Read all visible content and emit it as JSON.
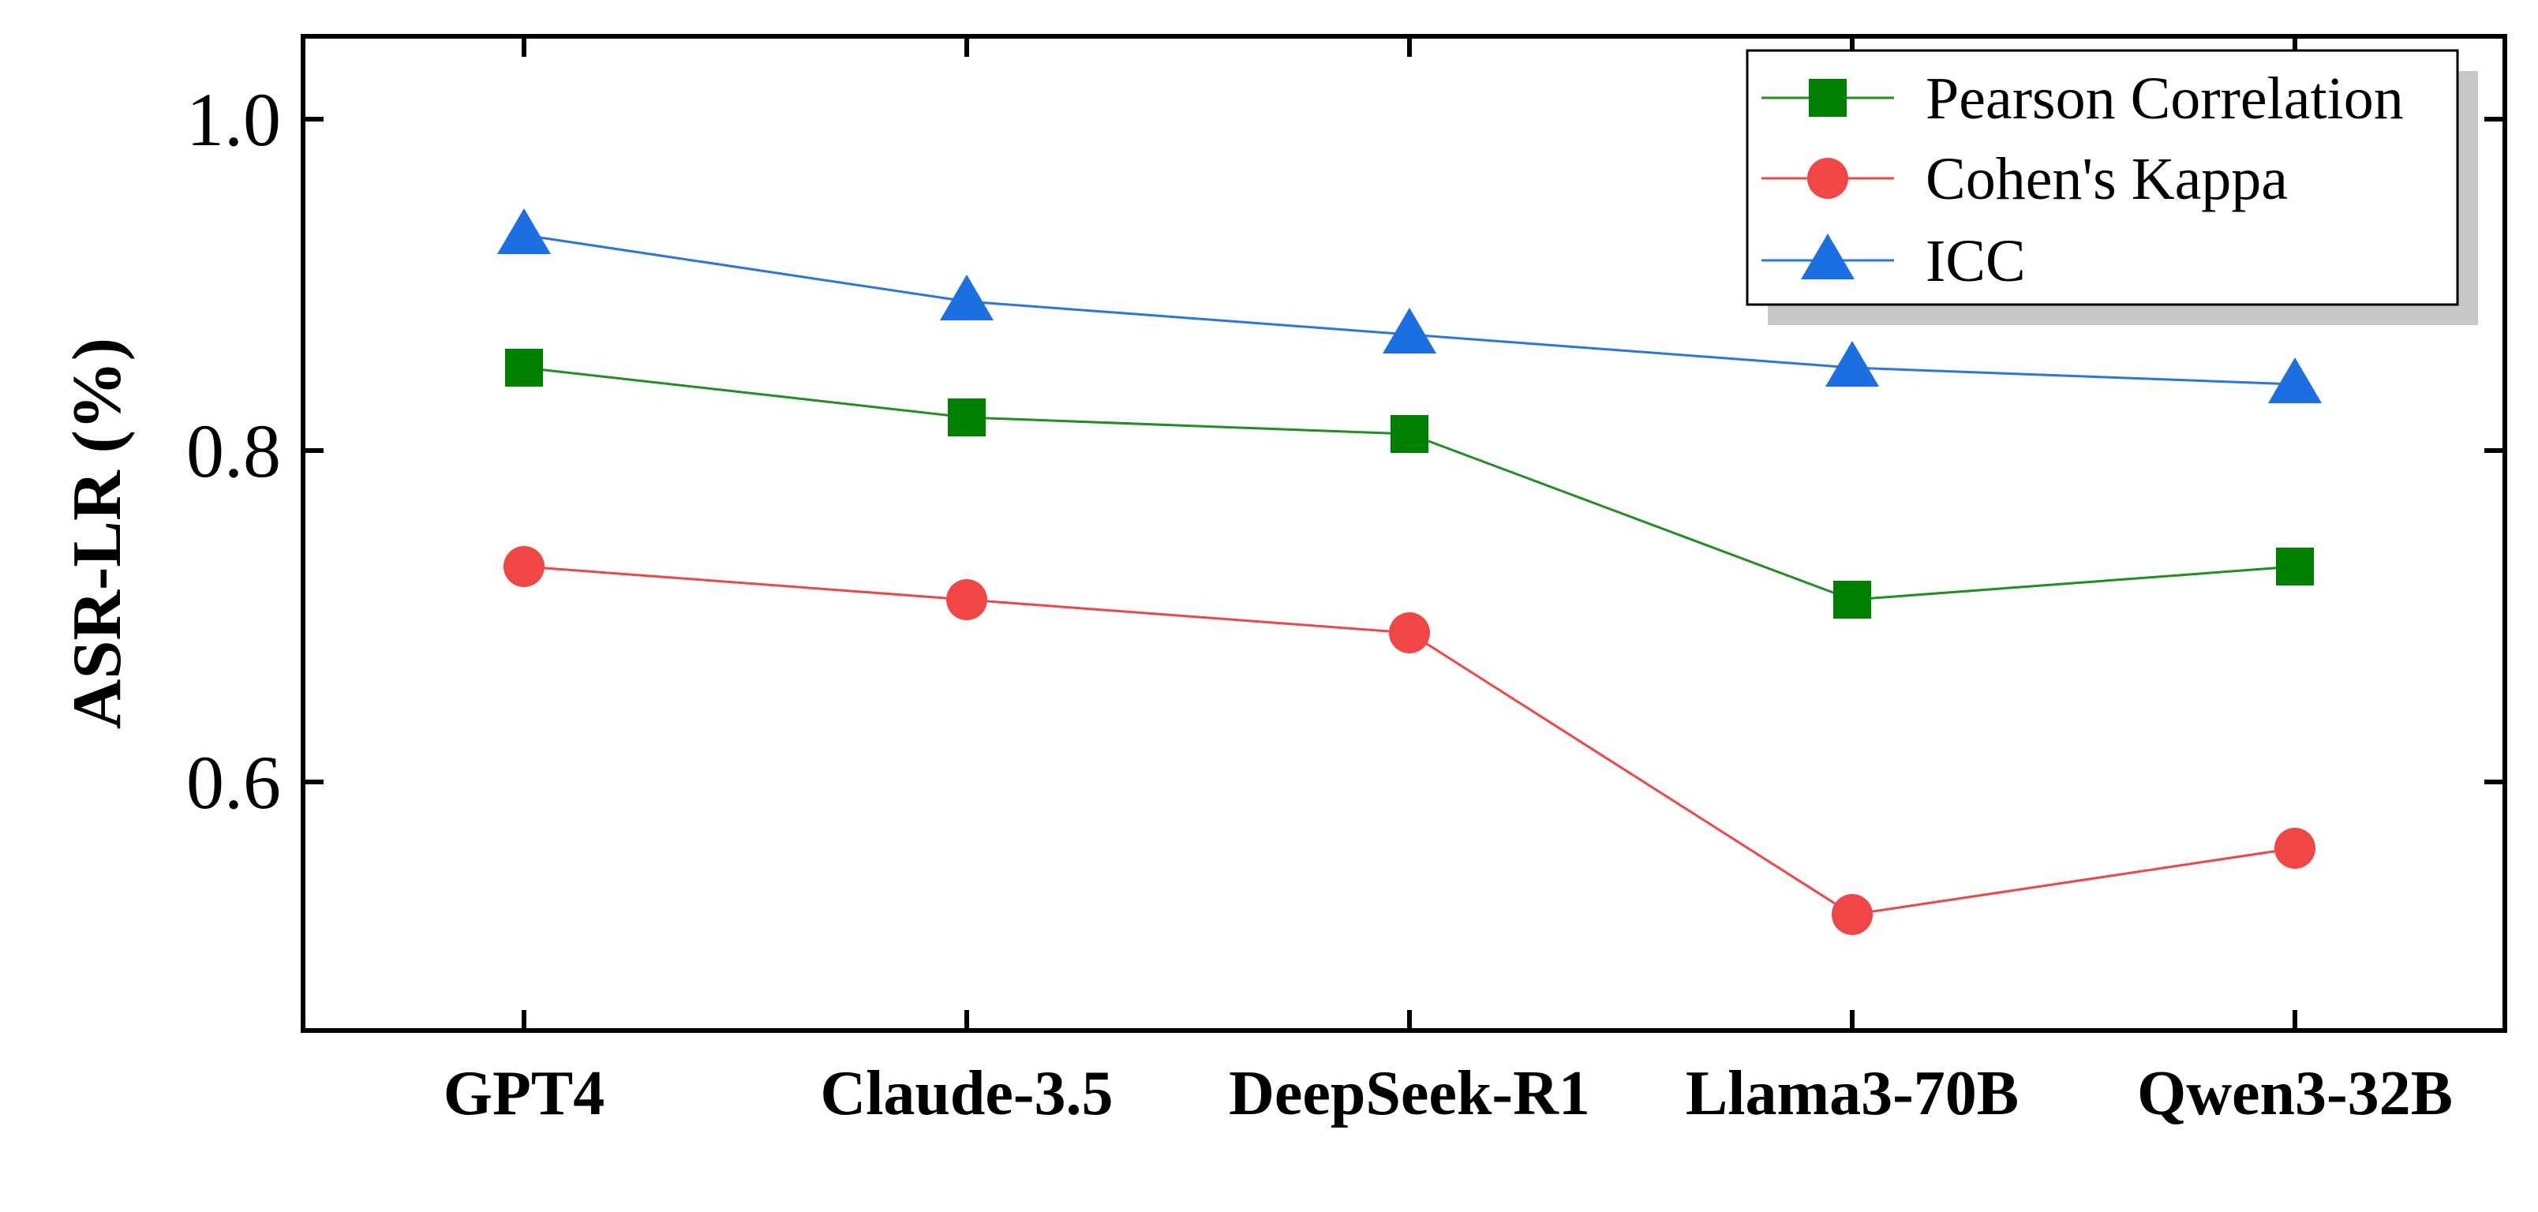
{
  "chart_data": {
    "type": "line",
    "title": "",
    "xlabel": "",
    "ylabel": "ASR-LR (%)",
    "ylim": [
      0.45,
      1.05
    ],
    "yticks": [
      0.6,
      0.8,
      1.0
    ],
    "ytick_labels": [
      "0.6",
      "0.8",
      "1.0"
    ],
    "grid": false,
    "legend_position": "top-right",
    "categories": [
      "GPT4",
      "Claude-3.5",
      "DeepSeek-R1",
      "Llama3-70B",
      "Qwen3-32B"
    ],
    "series": [
      {
        "name": "Pearson Correlation",
        "marker": "square",
        "color": "#008000",
        "line_color": "#1f8f1f",
        "values": [
          0.85,
          0.82,
          0.81,
          0.71,
          0.73
        ]
      },
      {
        "name": "Cohen's Kappa",
        "marker": "circle",
        "color": "#f04646",
        "line_color": "#f04646",
        "values": [
          0.73,
          0.71,
          0.69,
          0.52,
          0.56
        ]
      },
      {
        "name": "ICC",
        "marker": "triangle",
        "color": "#1c6fe0",
        "line_color": "#2a76e0",
        "values": [
          0.93,
          0.89,
          0.87,
          0.85,
          0.84
        ]
      }
    ]
  }
}
